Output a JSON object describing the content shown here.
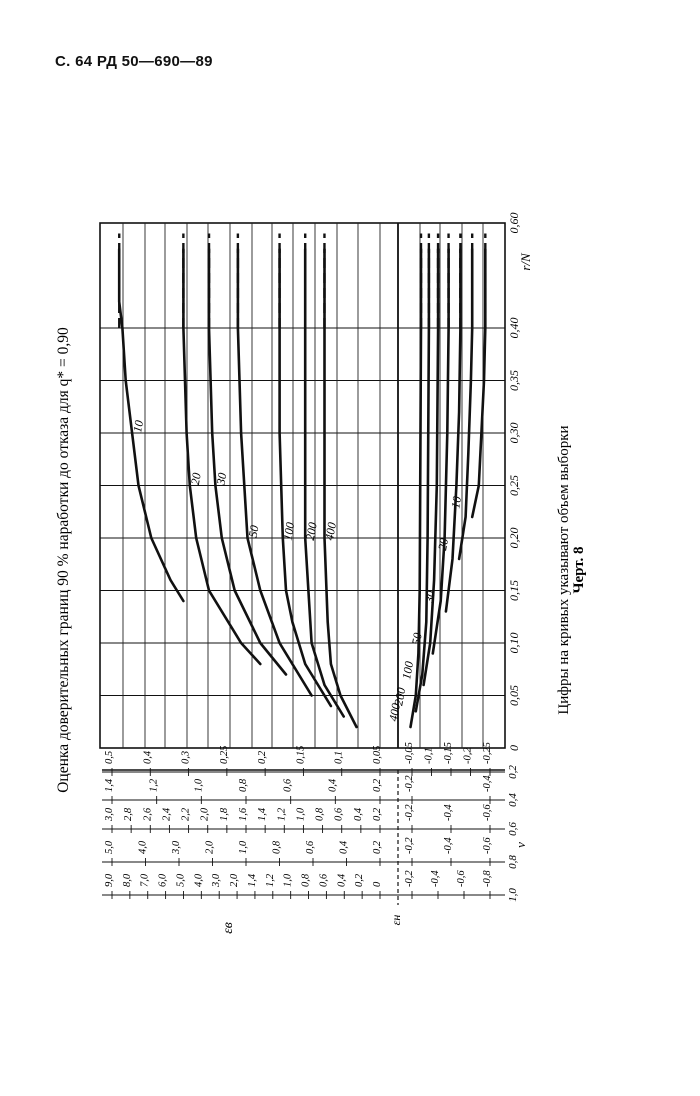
{
  "header": {
    "page": "С. 64",
    "doc": "РД 50—690—89"
  },
  "chart_data": {
    "type": "line",
    "orientation": "rotated-90",
    "title": "Оценка доверительных границ 90 % наработки до отказа для q* = 0,90",
    "caption": "Цифры на кривых указывают объем выборки",
    "figure_label": "Черт. 8",
    "xlabel": "r/N",
    "x_ticks": [
      "0",
      "0,05",
      "0,10",
      "0,15",
      "0,20",
      "0,25",
      "0,30",
      "0,35",
      "0,40",
      "0,60"
    ],
    "x_tick_values": [
      0,
      0.05,
      0.1,
      0.15,
      0.2,
      0.25,
      0.3,
      0.35,
      0.4,
      0.6
    ],
    "left_axis": {
      "nu_label": "ν",
      "nu_ticks": [
        "1,0",
        "0,8",
        "0,6",
        "0,4",
        "0,2"
      ],
      "eps_b_label": "εв",
      "eps_h_label": "εн",
      "columns": [
        {
          "nu": "1,0",
          "upper": [
            "9,0",
            "8,0",
            "7,0",
            "6,0",
            "5,0",
            "4,0",
            "3,0",
            "2,0",
            "1,4",
            "1,2",
            "1,0",
            "0,8",
            "0,6",
            "0,4",
            "0,2",
            "0"
          ],
          "lower": [
            "-0,2",
            "-0,4",
            "-0,6",
            "-0,8"
          ]
        },
        {
          "nu": "0,8",
          "upper": [
            "5,0",
            "4,0",
            "3,0",
            "2,0",
            "1,0",
            "0,8",
            "0,6",
            "0,4",
            "0,2"
          ],
          "lower": [
            "-0,2",
            "-0,4",
            "-0,6"
          ]
        },
        {
          "nu": "0,6",
          "upper": [
            "3,0",
            "2,8",
            "2,6",
            "2,4",
            "2,2",
            "2,0",
            "1,8",
            "1,6",
            "1,4",
            "1,2",
            "1,0",
            "0,8",
            "0,6",
            "0,4",
            "0,2"
          ],
          "lower": [
            "-0,2",
            "-0,4",
            "-0,6"
          ]
        },
        {
          "nu": "0,4",
          "upper": [
            "1,4",
            "1,2",
            "1,0",
            "0,8",
            "0,6",
            "0,4",
            "0,2"
          ],
          "lower": [
            "-0,2",
            "-0,4"
          ]
        },
        {
          "nu": "0,2",
          "upper": [
            "0,5",
            "0,4",
            "0,3",
            "0,25",
            "0,2",
            "0,15",
            "0,1",
            "0,05"
          ],
          "lower": [
            "-0,05",
            "-0,1",
            "-0,15",
            "-0,2",
            "-0,25"
          ]
        }
      ]
    },
    "series_upper": [
      {
        "name": "10",
        "x": [
          0.14,
          0.16,
          0.2,
          0.25,
          0.3,
          0.35,
          0.4,
          0.45,
          0.55
        ],
        "y": [
          3.3,
          3.5,
          3.8,
          4.0,
          4.1,
          4.2,
          4.25,
          4.3,
          4.3
        ]
      },
      {
        "name": "20",
        "x": [
          0.08,
          0.1,
          0.15,
          0.2,
          0.25,
          0.3,
          0.4,
          0.55
        ],
        "y": [
          2.1,
          2.4,
          2.9,
          3.1,
          3.2,
          3.25,
          3.3,
          3.3
        ]
      },
      {
        "name": "30",
        "x": [
          0.07,
          0.1,
          0.15,
          0.2,
          0.25,
          0.3,
          0.4,
          0.55
        ],
        "y": [
          1.7,
          2.1,
          2.5,
          2.7,
          2.8,
          2.85,
          2.9,
          2.9
        ]
      },
      {
        "name": "50",
        "x": [
          0.05,
          0.1,
          0.15,
          0.2,
          0.3,
          0.4,
          0.55
        ],
        "y": [
          1.3,
          1.8,
          2.1,
          2.3,
          2.4,
          2.45,
          2.45
        ]
      },
      {
        "name": "100",
        "x": [
          0.04,
          0.08,
          0.12,
          0.15,
          0.2,
          0.3,
          0.4,
          0.55
        ],
        "y": [
          1.0,
          1.4,
          1.6,
          1.7,
          1.75,
          1.8,
          1.8,
          1.8
        ]
      },
      {
        "name": "200",
        "x": [
          0.03,
          0.06,
          0.1,
          0.15,
          0.2,
          0.3,
          0.4,
          0.55
        ],
        "y": [
          0.8,
          1.1,
          1.3,
          1.35,
          1.4,
          1.4,
          1.4,
          1.4
        ]
      },
      {
        "name": "400",
        "x": [
          0.02,
          0.05,
          0.08,
          0.12,
          0.2,
          0.3,
          0.4,
          0.55
        ],
        "y": [
          0.6,
          0.85,
          1.0,
          1.05,
          1.1,
          1.1,
          1.1,
          1.1
        ]
      }
    ],
    "series_lower": [
      {
        "name": "10",
        "x": [
          0.22,
          0.25,
          0.3,
          0.35,
          0.4,
          0.55
        ],
        "y": [
          -0.55,
          -0.6,
          -0.62,
          -0.64,
          -0.65,
          -0.65
        ]
      },
      {
        "name": "20",
        "x": [
          0.18,
          0.22,
          0.28,
          0.35,
          0.4,
          0.55
        ],
        "y": [
          -0.45,
          -0.5,
          -0.52,
          -0.54,
          -0.55,
          -0.55
        ]
      },
      {
        "name": "30",
        "x": [
          0.13,
          0.18,
          0.25,
          0.32,
          0.4,
          0.55
        ],
        "y": [
          -0.35,
          -0.4,
          -0.43,
          -0.45,
          -0.46,
          -0.46
        ]
      },
      {
        "name": "50",
        "x": [
          0.09,
          0.14,
          0.2,
          0.3,
          0.4,
          0.55
        ],
        "y": [
          -0.25,
          -0.31,
          -0.34,
          -0.36,
          -0.37,
          -0.37
        ]
      },
      {
        "name": "100",
        "x": [
          0.06,
          0.1,
          0.16,
          0.25,
          0.4,
          0.55
        ],
        "y": [
          -0.18,
          -0.23,
          -0.26,
          -0.28,
          -0.29,
          -0.29
        ]
      },
      {
        "name": "200",
        "x": [
          0.035,
          0.07,
          0.12,
          0.2,
          0.4,
          0.55
        ],
        "y": [
          -0.12,
          -0.17,
          -0.2,
          -0.21,
          -0.22,
          -0.22
        ]
      },
      {
        "name": "400",
        "x": [
          0.02,
          0.05,
          0.09,
          0.15,
          0.4,
          0.55
        ],
        "y": [
          -0.08,
          -0.12,
          -0.14,
          -0.15,
          -0.16,
          -0.16
        ]
      }
    ],
    "eps_upper_ticks": [
      "4,0",
      "3,0",
      "2,0",
      "1,0",
      "0"
    ],
    "eps_lower_ticks": [
      "-0,2",
      "-0,4",
      "-0,6",
      "-0,8"
    ]
  }
}
